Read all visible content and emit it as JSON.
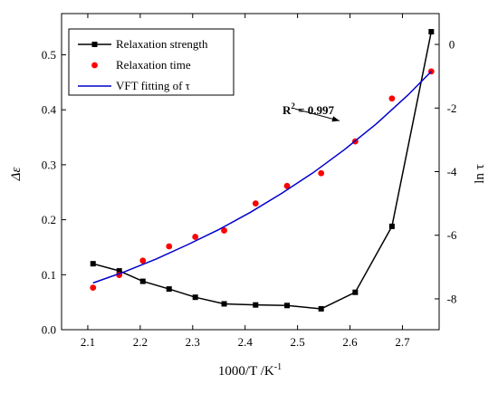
{
  "chart_data": {
    "type": "line",
    "xlabel": "1000/T /K",
    "xlabel_sup": "-1",
    "ylabel_left": "Δε",
    "ylabel_right": "ln τ",
    "xlim": [
      2.05,
      2.77
    ],
    "ylim_left": [
      0.0,
      0.575
    ],
    "ylim_right": [
      -8.97,
      0.97
    ],
    "x_ticks": [
      2.1,
      2.2,
      2.3,
      2.4,
      2.5,
      2.6,
      2.7
    ],
    "x_tick_labels": [
      "2.1",
      "2.2",
      "2.3",
      "2.4",
      "2.5",
      "2.6",
      "2.7"
    ],
    "y_left_ticks": [
      0.0,
      0.1,
      0.2,
      0.3,
      0.4,
      0.5
    ],
    "y_left_tick_labels": [
      "0.0",
      "0.1",
      "0.2",
      "0.3",
      "0.4",
      "0.5"
    ],
    "y_right_ticks": [
      0,
      -2,
      -4,
      -6,
      -8
    ],
    "y_right_tick_labels": [
      "0",
      "-2",
      "-4",
      "-6",
      "-8"
    ],
    "legend_position": "top-left",
    "series": [
      {
        "name": "Relaxation strength",
        "axis": "left",
        "style": "line-square",
        "color": "#000000",
        "x": [
          2.11,
          2.16,
          2.205,
          2.255,
          2.305,
          2.36,
          2.42,
          2.48,
          2.545,
          2.61,
          2.68,
          2.755
        ],
        "values": [
          0.12,
          0.107,
          0.088,
          0.074,
          0.059,
          0.047,
          0.045,
          0.044,
          0.038,
          0.068,
          0.188,
          0.542
        ]
      },
      {
        "name": "Relaxation time",
        "axis": "right",
        "style": "scatter",
        "color": "#ff0000",
        "x": [
          2.11,
          2.16,
          2.205,
          2.255,
          2.305,
          2.36,
          2.42,
          2.48,
          2.545,
          2.61,
          2.68,
          2.755
        ],
        "values": [
          -7.65,
          -7.25,
          -6.8,
          -6.35,
          -6.05,
          -5.85,
          -5.0,
          -4.45,
          -4.05,
          -3.05,
          -1.7,
          -0.85
        ]
      },
      {
        "name": "VFT fitting of τ",
        "axis": "right",
        "style": "line",
        "color": "#0000cc",
        "x": [
          2.11,
          2.17,
          2.23,
          2.29,
          2.35,
          2.41,
          2.47,
          2.53,
          2.59,
          2.65,
          2.71,
          2.755
        ],
        "values": [
          -7.5,
          -7.15,
          -6.75,
          -6.3,
          -5.82,
          -5.28,
          -4.68,
          -4.03,
          -3.3,
          -2.5,
          -1.6,
          -0.85
        ]
      }
    ],
    "annotation": {
      "text": "R",
      "sup": "2",
      "value": " = 0.997",
      "x": 2.5,
      "y": 0.415,
      "arrow_to": [
        2.58,
        0.38
      ]
    }
  }
}
